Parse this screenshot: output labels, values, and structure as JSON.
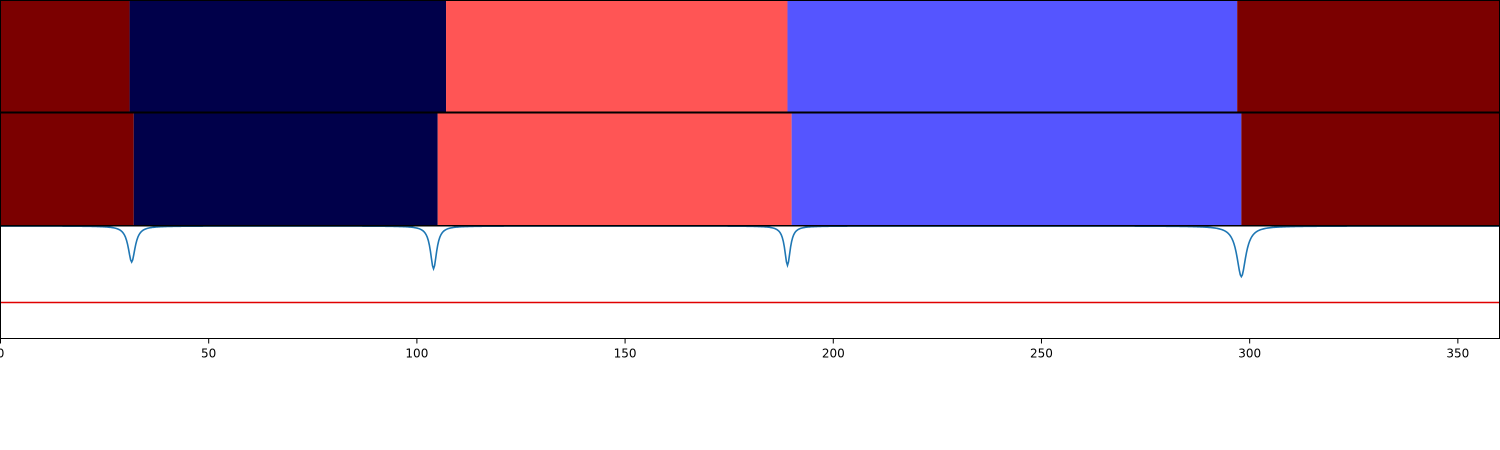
{
  "chart_data": {
    "type": "heatmap",
    "xlim": [
      0,
      360
    ],
    "x_ticks": [
      0,
      50,
      100,
      150,
      200,
      250,
      300,
      350
    ],
    "x_tick_labels": [
      "0",
      "50",
      "100",
      "150",
      "200",
      "250",
      "300",
      "350"
    ],
    "grid": false,
    "legend": "none",
    "segment_rows": [
      {
        "segments": [
          {
            "start": 0,
            "end": 31,
            "color": "#7b0000"
          },
          {
            "start": 31,
            "end": 107,
            "color": "#00004a"
          },
          {
            "start": 107,
            "end": 189,
            "color": "#ff5555"
          },
          {
            "start": 189,
            "end": 297,
            "color": "#5555ff"
          },
          {
            "start": 297,
            "end": 360,
            "color": "#7b0000"
          }
        ]
      },
      {
        "segments": [
          {
            "start": 0,
            "end": 32,
            "color": "#7b0000"
          },
          {
            "start": 32,
            "end": 105,
            "color": "#00004a"
          },
          {
            "start": 105,
            "end": 190,
            "color": "#ff5555"
          },
          {
            "start": 190,
            "end": 298,
            "color": "#5555ff"
          },
          {
            "start": 298,
            "end": 360,
            "color": "#7b0000"
          }
        ]
      }
    ],
    "signal": {
      "color": "#1f77b4",
      "baseline": 0.0,
      "ylim": [
        -1.0,
        0.0
      ],
      "dips": [
        {
          "x": 31.5,
          "depth": -0.32,
          "width": 1.0
        },
        {
          "x": 104.0,
          "depth": -0.38,
          "width": 0.9
        },
        {
          "x": 189.0,
          "depth": -0.35,
          "width": 0.8
        },
        {
          "x": 298.0,
          "depth": -0.45,
          "width": 1.3
        }
      ]
    },
    "threshold": {
      "value": -0.68,
      "color": "#e00000"
    }
  }
}
